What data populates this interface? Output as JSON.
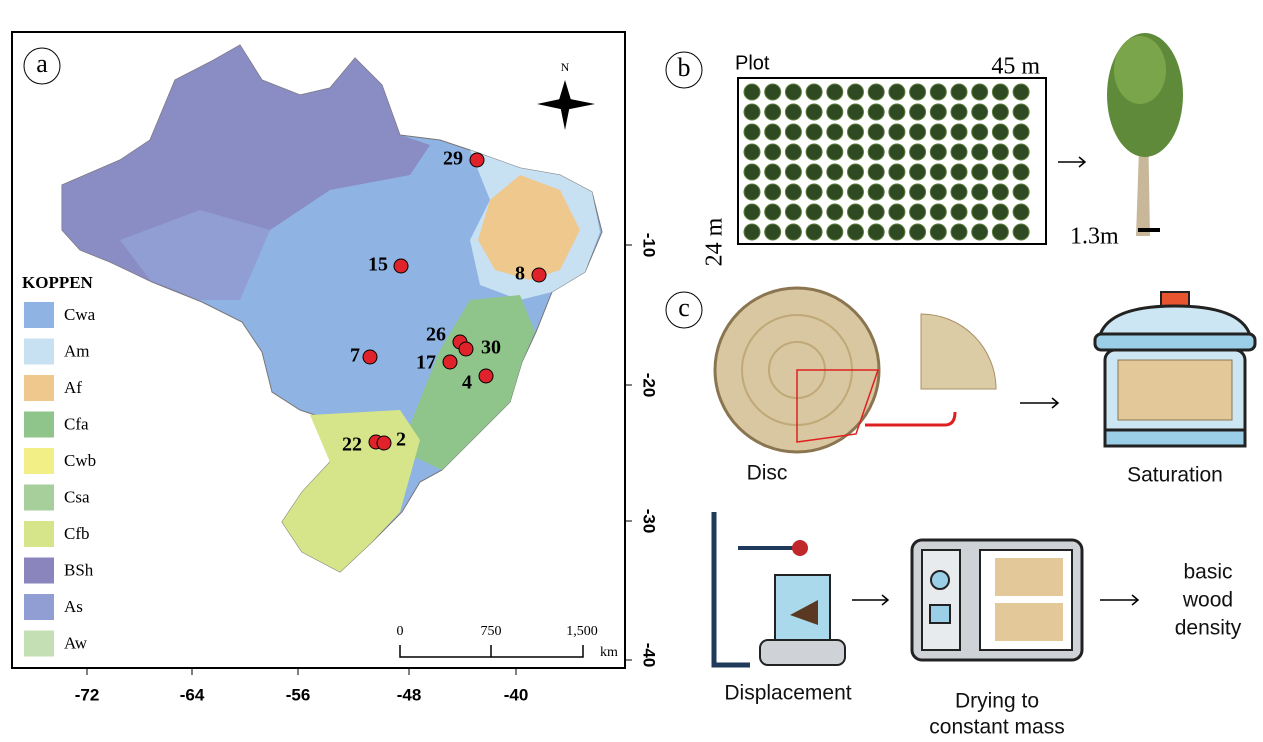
{
  "panel_a": {
    "label": "a",
    "north": "N",
    "legend": {
      "title": "KOPPEN",
      "items": [
        {
          "label": "Cwa",
          "color": "#8fb3e3"
        },
        {
          "label": "Am",
          "color": "#c7e0f2"
        },
        {
          "label": "Af",
          "color": "#efc88e"
        },
        {
          "label": "Cfa",
          "color": "#8fc58b"
        },
        {
          "label": "Cwb",
          "color": "#f2ef86"
        },
        {
          "label": "Csa",
          "color": "#a7cf9c"
        },
        {
          "label": "Cfb",
          "color": "#d6e58a"
        },
        {
          "label": "BSh",
          "color": "#8a86bd"
        },
        {
          "label": "As",
          "color": "#909ed3"
        },
        {
          "label": "Aw",
          "color": "#c4dfb3"
        }
      ]
    },
    "sites": [
      "29",
      "15",
      "8",
      "26",
      "30",
      "7",
      "17",
      "4",
      "22",
      "2"
    ],
    "x_ticks": [
      "-72",
      "-64",
      "-56",
      "-48",
      "-40"
    ],
    "y_ticks": [
      "-10",
      "-20",
      "-30",
      "-40"
    ],
    "scale_bar": {
      "ticks": [
        "0",
        "750",
        "1,500"
      ],
      "unit": "km"
    }
  },
  "panel_b": {
    "label": "b",
    "plot": "Plot",
    "width": "45 m",
    "height": "24 m",
    "dbh": "1.3m"
  },
  "panel_c": {
    "label": "c",
    "disc": "Disc",
    "saturation": "Saturation",
    "displacement": "Displacement",
    "drying": [
      "Drying to",
      "constant mass"
    ],
    "result": [
      "basic",
      "wood",
      "density"
    ]
  }
}
